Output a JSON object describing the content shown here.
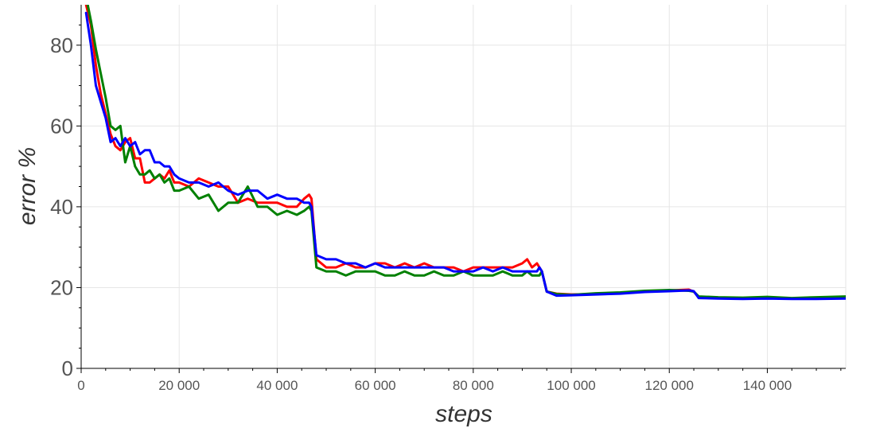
{
  "chart_data": {
    "type": "line",
    "title": "",
    "xlabel": "steps",
    "ylabel": "error %",
    "xlim": [
      0,
      156000
    ],
    "ylim": [
      0,
      90
    ],
    "grid": true,
    "legend": "none",
    "x_ticks": [
      {
        "value": 0,
        "label": "0"
      },
      {
        "value": 20000,
        "label": "20 000"
      },
      {
        "value": 40000,
        "label": "40 000"
      },
      {
        "value": 60000,
        "label": "60 000"
      },
      {
        "value": 80000,
        "label": "80 000"
      },
      {
        "value": 100000,
        "label": "100 000"
      },
      {
        "value": 120000,
        "label": "120 000"
      },
      {
        "value": 140000,
        "label": "140 000"
      }
    ],
    "y_ticks": [
      {
        "value": 0,
        "label": "0"
      },
      {
        "value": 20,
        "label": "20"
      },
      {
        "value": 40,
        "label": "40"
      },
      {
        "value": 60,
        "label": "60"
      },
      {
        "value": 80,
        "label": "80"
      }
    ],
    "series": [
      {
        "color": "#ff0000",
        "x": [
          1000,
          2000,
          3000,
          4000,
          5000,
          6000,
          7000,
          8000,
          9000,
          10000,
          11000,
          12000,
          13000,
          14000,
          15000,
          16000,
          17000,
          18000,
          19000,
          20000,
          22000,
          24000,
          26000,
          28000,
          30000,
          32000,
          34000,
          36000,
          38000,
          40000,
          42000,
          44000,
          45500,
          46500,
          47000,
          48000,
          50000,
          52000,
          54000,
          56000,
          58000,
          60000,
          62000,
          64000,
          66000,
          68000,
          70000,
          72000,
          74000,
          76000,
          78000,
          80000,
          82000,
          84000,
          86000,
          88000,
          90000,
          91000,
          92000,
          93000,
          93500,
          94000,
          95000,
          97000,
          100000,
          105000,
          110000,
          115000,
          120000,
          124000,
          125000,
          126000,
          130000,
          135000,
          140000,
          145000,
          150000,
          156000
        ],
        "y": [
          90,
          85,
          75,
          68,
          63,
          58,
          55,
          54,
          56,
          57,
          52,
          52,
          46,
          46,
          47,
          48,
          47,
          49,
          46,
          46,
          45,
          47,
          46,
          45,
          45,
          41,
          42,
          41,
          41,
          41,
          40,
          40,
          42,
          43,
          42,
          27,
          25,
          25,
          26,
          25,
          25,
          26,
          26,
          25,
          26,
          25,
          26,
          25,
          25,
          25,
          24,
          25,
          25,
          25,
          25,
          25,
          26,
          27,
          25,
          26,
          25,
          24,
          19,
          18.5,
          18.3,
          18.4,
          18.6,
          19,
          19.3,
          19.5,
          19,
          17.6,
          17.4,
          17.3,
          17.4,
          17.3,
          17.3,
          17.5
        ]
      },
      {
        "color": "#008000",
        "x": [
          1000,
          2000,
          3000,
          4000,
          5000,
          6000,
          7000,
          8000,
          9000,
          10000,
          11000,
          12000,
          13000,
          14000,
          15000,
          16000,
          17000,
          18000,
          19000,
          20000,
          22000,
          24000,
          26000,
          28000,
          30000,
          32000,
          34000,
          36000,
          38000,
          40000,
          42000,
          44000,
          45500,
          46500,
          47000,
          48000,
          50000,
          52000,
          54000,
          56000,
          58000,
          60000,
          62000,
          64000,
          66000,
          68000,
          70000,
          72000,
          74000,
          76000,
          78000,
          80000,
          82000,
          84000,
          86000,
          88000,
          90000,
          91000,
          92000,
          93000,
          93500,
          94000,
          95000,
          97000,
          100000,
          105000,
          110000,
          115000,
          120000,
          124000,
          125000,
          126000,
          130000,
          135000,
          140000,
          145000,
          150000,
          156000
        ],
        "y": [
          92,
          86,
          79,
          73,
          67,
          60,
          59,
          60,
          51,
          55,
          50,
          48,
          48,
          49,
          47,
          48,
          46,
          47,
          44,
          44,
          45,
          42,
          43,
          39,
          41,
          41,
          45,
          40,
          40,
          38,
          39,
          38,
          39,
          40,
          39,
          25,
          24,
          24,
          23,
          24,
          24,
          24,
          23,
          23,
          24,
          23,
          23,
          24,
          23,
          23,
          24,
          23,
          23,
          23,
          24,
          23,
          23,
          24,
          23,
          23,
          23,
          24,
          19,
          18.4,
          18.2,
          18.6,
          18.8,
          19.2,
          19.4,
          19.2,
          19,
          17.8,
          17.6,
          17.5,
          17.7,
          17.4,
          17.6,
          17.8
        ]
      },
      {
        "color": "#0000ff",
        "x": [
          1000,
          2000,
          3000,
          4000,
          5000,
          6000,
          7000,
          8000,
          9000,
          10000,
          11000,
          12000,
          13000,
          14000,
          15000,
          16000,
          17000,
          18000,
          19000,
          20000,
          22000,
          24000,
          26000,
          28000,
          30000,
          32000,
          34000,
          36000,
          38000,
          40000,
          42000,
          44000,
          45500,
          46500,
          47000,
          48000,
          50000,
          52000,
          54000,
          56000,
          58000,
          60000,
          62000,
          64000,
          66000,
          68000,
          70000,
          72000,
          74000,
          76000,
          78000,
          80000,
          82000,
          84000,
          86000,
          88000,
          90000,
          91000,
          92000,
          93000,
          93500,
          94000,
          95000,
          97000,
          100000,
          105000,
          110000,
          115000,
          120000,
          124000,
          125000,
          126000,
          130000,
          135000,
          140000,
          145000,
          150000,
          156000
        ],
        "y": [
          88,
          80,
          70,
          66,
          62,
          56,
          57,
          55,
          57,
          55,
          56,
          53,
          54,
          54,
          51,
          51,
          50,
          50,
          48,
          47,
          46,
          46,
          45,
          46,
          44,
          43,
          44,
          44,
          42,
          43,
          42,
          42,
          41,
          41,
          40,
          28,
          27,
          27,
          26,
          26,
          25,
          26,
          25,
          25,
          25,
          25,
          25,
          25,
          25,
          24,
          24,
          24,
          25,
          24,
          25,
          24,
          24,
          24,
          24,
          24,
          25,
          24,
          19,
          18,
          18.1,
          18.3,
          18.5,
          18.9,
          19.1,
          19.3,
          19.1,
          17.4,
          17.3,
          17.2,
          17.3,
          17.2,
          17.2,
          17.3
        ]
      }
    ]
  }
}
